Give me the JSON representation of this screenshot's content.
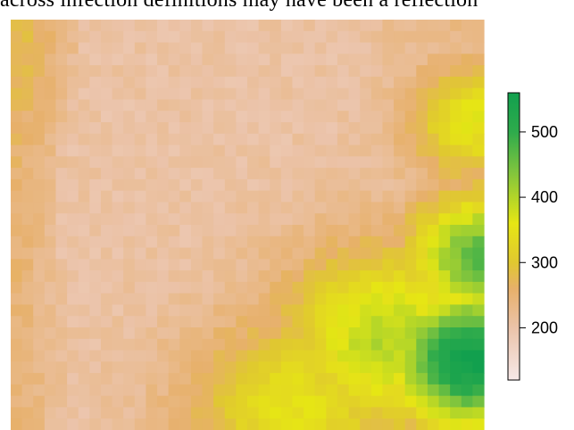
{
  "page": {
    "snippet_text": "across infection definitions may have been a reflection"
  },
  "chart_data": {
    "type": "heatmap",
    "title": "",
    "xlabel": "",
    "ylabel": "",
    "grid": false,
    "legend": "right",
    "colorbar": {
      "range": [
        120,
        560
      ],
      "ticks": [
        200,
        300,
        400,
        500
      ],
      "tick_labels": [
        "200",
        "300",
        "400",
        "500"
      ],
      "colors": [
        {
          "value": 120,
          "color": "#f6e8e8"
        },
        {
          "value": 200,
          "color": "#ebc3a9"
        },
        {
          "value": 260,
          "color": "#e7b06a"
        },
        {
          "value": 300,
          "color": "#e0c830"
        },
        {
          "value": 360,
          "color": "#e6e614"
        },
        {
          "value": 440,
          "color": "#7ec43e"
        },
        {
          "value": 500,
          "color": "#2eab4c"
        },
        {
          "value": 560,
          "color": "#12a04e"
        }
      ]
    },
    "grid_size": {
      "cols": 42,
      "rows": 36
    },
    "value_model": {
      "base": 205,
      "ridge_points": [
        [
          0.0,
          0.25
        ],
        [
          0.2,
          0.24
        ],
        [
          0.35,
          0.22
        ],
        [
          0.5,
          0.2
        ],
        [
          0.65,
          0.22
        ],
        [
          0.8,
          0.24
        ],
        [
          1.0,
          0.26
        ]
      ],
      "ridge_depth": -80,
      "ridge_width": 0.07,
      "upper_left_value": 240,
      "upper_right_value": 240,
      "upper_valley_depth": -110,
      "left_band_value": 250,
      "hills": [
        {
          "x": 0.97,
          "y": 0.83,
          "peak": 560,
          "spread": 0.12
        },
        {
          "x": 1.0,
          "y": 0.58,
          "peak": 470,
          "spread": 0.11
        },
        {
          "x": 0.8,
          "y": 0.78,
          "peak": 400,
          "spread": 0.16
        },
        {
          "x": 0.6,
          "y": 0.95,
          "peak": 350,
          "spread": 0.16
        },
        {
          "x": 0.98,
          "y": 0.25,
          "peak": 360,
          "spread": 0.1
        }
      ]
    }
  }
}
